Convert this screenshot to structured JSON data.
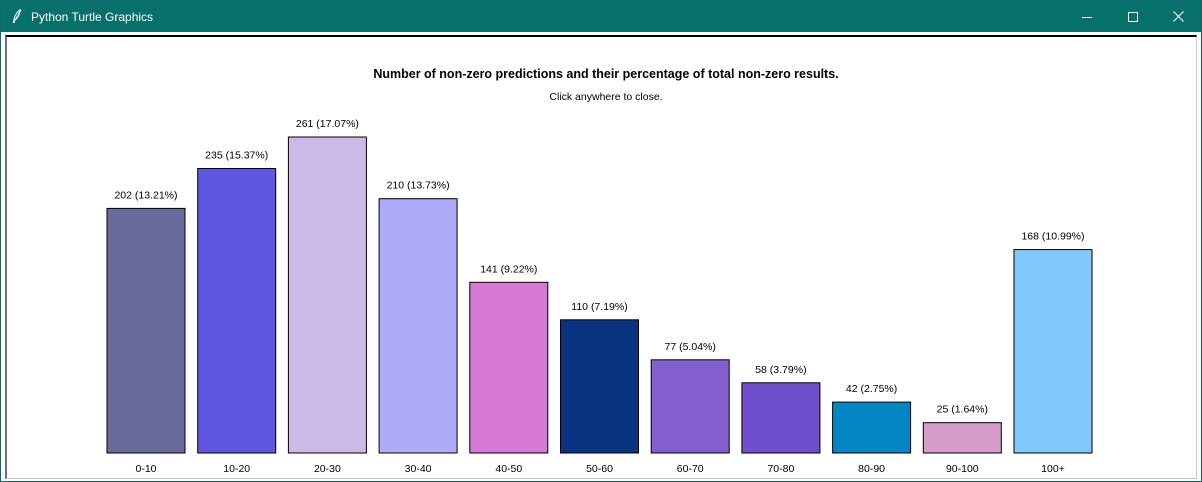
{
  "window": {
    "title": "Python Turtle Graphics",
    "app_icon": "feather-pen-icon",
    "controls": {
      "minimize_icon": "minimize-icon",
      "maximize_icon": "maximize-icon",
      "close_icon": "close-icon"
    },
    "titlebar_color": "#07706b"
  },
  "chart_data": {
    "type": "bar",
    "title": "Number of non-zero predictions and their percentage of total non-zero results.",
    "subtitle": "Click anywhere to close.",
    "xlabel": "",
    "ylabel": "",
    "grid": false,
    "categories": [
      "0-10",
      "10-20",
      "20-30",
      "30-40",
      "40-50",
      "50-60",
      "60-70",
      "70-80",
      "80-90",
      "90-100",
      "100+"
    ],
    "values": [
      202,
      235,
      261,
      210,
      141,
      110,
      77,
      58,
      42,
      25,
      168
    ],
    "percentages": [
      "13.21%",
      "15.37%",
      "17.07%",
      "13.73%",
      "9.22%",
      "7.19%",
      "5.04%",
      "3.79%",
      "2.75%",
      "1.64%",
      "10.99%"
    ],
    "data_labels": [
      "202 (13.21%)",
      "235 (15.37%)",
      "261 (17.07%)",
      "210 (13.73%)",
      "141 (9.22%)",
      "110 (7.19%)",
      "77 (5.04%)",
      "58 (3.79%)",
      "42 (2.75%)",
      "25 (1.64%)",
      "168 (10.99%)"
    ],
    "colors": [
      "#6b6b9b",
      "#5f57df",
      "#ccbae6",
      "#aeabf8",
      "#d578d6",
      "#0a3382",
      "#835ecd",
      "#704fcd",
      "#0386c3",
      "#d69bc9",
      "#7fc9fc"
    ],
    "ylim": [
      0,
      261
    ]
  }
}
